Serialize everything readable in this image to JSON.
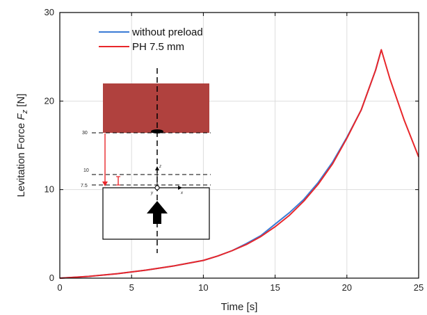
{
  "chart_data": {
    "type": "line",
    "xlabel": "Time [s]",
    "ylabel_prefix": "Levitation Force ",
    "ylabel_var": "F",
    "ylabel_sub": "z",
    "ylabel_unit": " [N]",
    "xlim": [
      0,
      25
    ],
    "ylim": [
      0,
      30
    ],
    "xticks": [
      0,
      5,
      10,
      15,
      20,
      25
    ],
    "yticks": [
      0,
      10,
      20,
      30
    ],
    "grid": true,
    "legend_position": "top-left",
    "series": [
      {
        "name": "without preload",
        "color": "#3a7bd5",
        "x": [
          0,
          2,
          4,
          6,
          8,
          10,
          11,
          12,
          13,
          14,
          15,
          16,
          17,
          18,
          19,
          20,
          21,
          22,
          22.4
        ],
        "y": [
          0,
          0.2,
          0.5,
          0.9,
          1.4,
          2.0,
          2.5,
          3.1,
          3.9,
          4.8,
          6.1,
          7.4,
          8.9,
          10.8,
          13.1,
          15.9,
          19.0,
          23.5,
          25.8
        ]
      },
      {
        "name": "PH 7.5 mm",
        "color": "#e8262a",
        "x": [
          0,
          2,
          4,
          6,
          8,
          10,
          11,
          12,
          13,
          14,
          15,
          16,
          17,
          18,
          19,
          20,
          21,
          22,
          22.4,
          23,
          24,
          25
        ],
        "y": [
          0,
          0.2,
          0.5,
          0.9,
          1.4,
          2.0,
          2.5,
          3.1,
          3.8,
          4.7,
          5.8,
          7.1,
          8.7,
          10.6,
          12.9,
          15.8,
          19.0,
          23.5,
          25.8,
          22.5,
          17.8,
          13.7
        ]
      }
    ],
    "inset": {
      "level_labels": [
        "30",
        "10",
        "7.5"
      ],
      "axis_labels": {
        "z": "z",
        "x": "x",
        "y": "y"
      },
      "magnet_color": "#b0413e"
    }
  }
}
